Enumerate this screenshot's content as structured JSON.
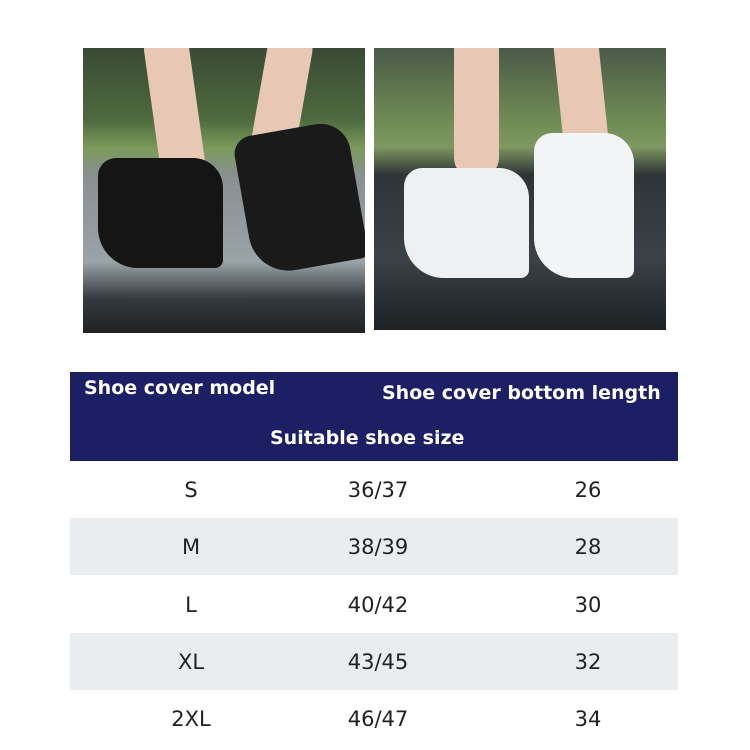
{
  "photos": [
    {
      "alt": "black shoe covers"
    },
    {
      "alt": "white shoe covers"
    }
  ],
  "table": {
    "header_color": "#1c1f63",
    "columns": [
      "Shoe cover model",
      "Suitable shoe size",
      "Shoe cover bottom length"
    ],
    "rows": [
      {
        "model": "S",
        "size": "36/37",
        "length": "26"
      },
      {
        "model": "M",
        "size": "38/39",
        "length": "28"
      },
      {
        "model": "L",
        "size": "40/42",
        "length": "30"
      },
      {
        "model": "XL",
        "size": "43/45",
        "length": "32"
      },
      {
        "model": "2XL",
        "size": "46/47",
        "length": "34"
      }
    ]
  }
}
